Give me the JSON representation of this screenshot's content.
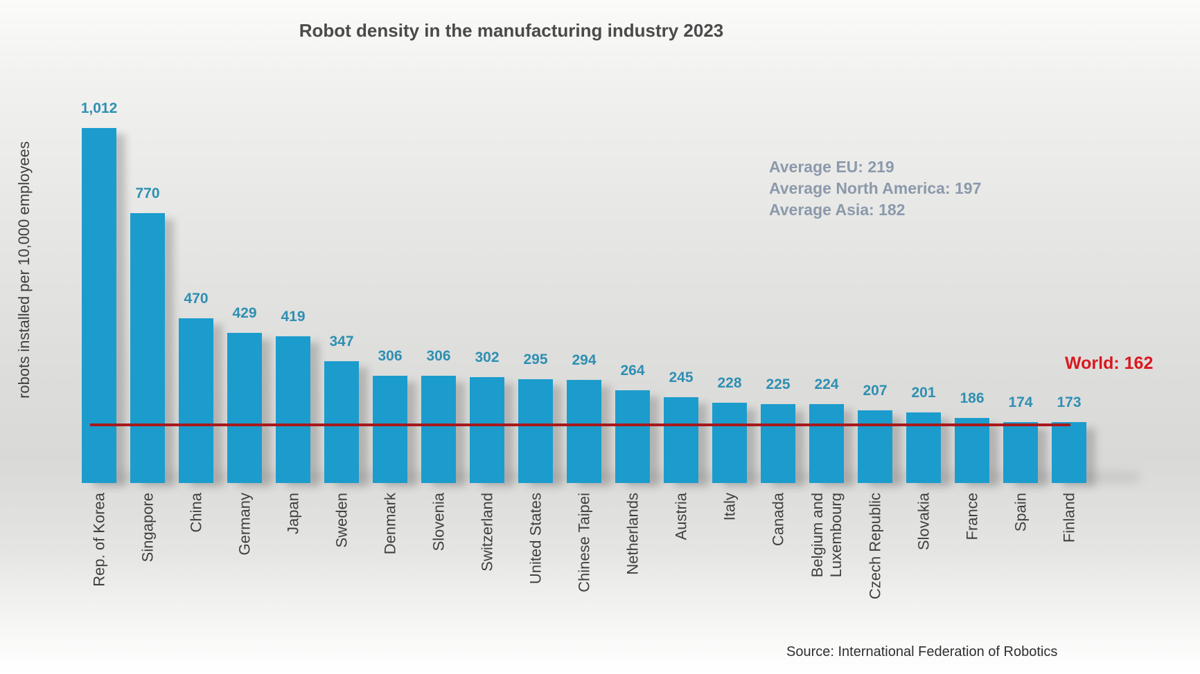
{
  "page": {
    "source_note": "Source: International Federation of Robotics"
  },
  "colors": {
    "bar": "#1b9ccd",
    "value_label": "#2e8fb2",
    "world_line": "#a8191c",
    "world_label": "#d9181f",
    "averages_text": "#8b99ab",
    "title_text": "#4a4a4a",
    "axis_text": "#3f3f3f",
    "source_text": "#2e2e2e"
  },
  "chart_data": {
    "type": "bar",
    "title": "Robot density in the manufacturing industry 2023",
    "subtitle": "",
    "xlabel": "",
    "ylabel": "robots installed per 10,000 employees",
    "grid": false,
    "legend": false,
    "ylim": [
      0,
      1100
    ],
    "categories": [
      "Rep. of Korea",
      "Singapore",
      "China",
      "Germany",
      "Japan",
      "Sweden",
      "Denmark",
      "Slovenia",
      "Switzerland",
      "United States",
      "Chinese Taipei",
      "Netherlands",
      "Austria",
      "Italy",
      "Canada",
      "Belgium and Luxembourg",
      "Czech Republic",
      "Slovakia",
      "France",
      "Spain",
      "Finland"
    ],
    "category_display": [
      "Rep. of Korea",
      "Singapore",
      "China",
      "Germany",
      "Japan",
      "Sweden",
      "Denmark",
      "Slovenia",
      "Switzerland",
      "United States",
      "Chinese Taipei",
      "Netherlands",
      "Austria",
      "Italy",
      "Canada",
      "Belgium and\nLuxembourg",
      "Czech Republic",
      "Slovakia",
      "France",
      "Spain",
      "Finland"
    ],
    "values": [
      1012,
      770,
      470,
      429,
      419,
      347,
      306,
      306,
      302,
      295,
      294,
      264,
      245,
      228,
      225,
      224,
      207,
      201,
      186,
      174,
      173
    ],
    "value_labels": [
      "1,012",
      "770",
      "470",
      "429",
      "419",
      "347",
      "306",
      "306",
      "302",
      "295",
      "294",
      "264",
      "245",
      "228",
      "225",
      "224",
      "207",
      "201",
      "186",
      "174",
      "173"
    ],
    "reference_line": {
      "label": "World: 162",
      "value": 162
    },
    "annotations": [
      "Average EU: 219",
      "Average North America: 197",
      "Average Asia: 182"
    ]
  }
}
